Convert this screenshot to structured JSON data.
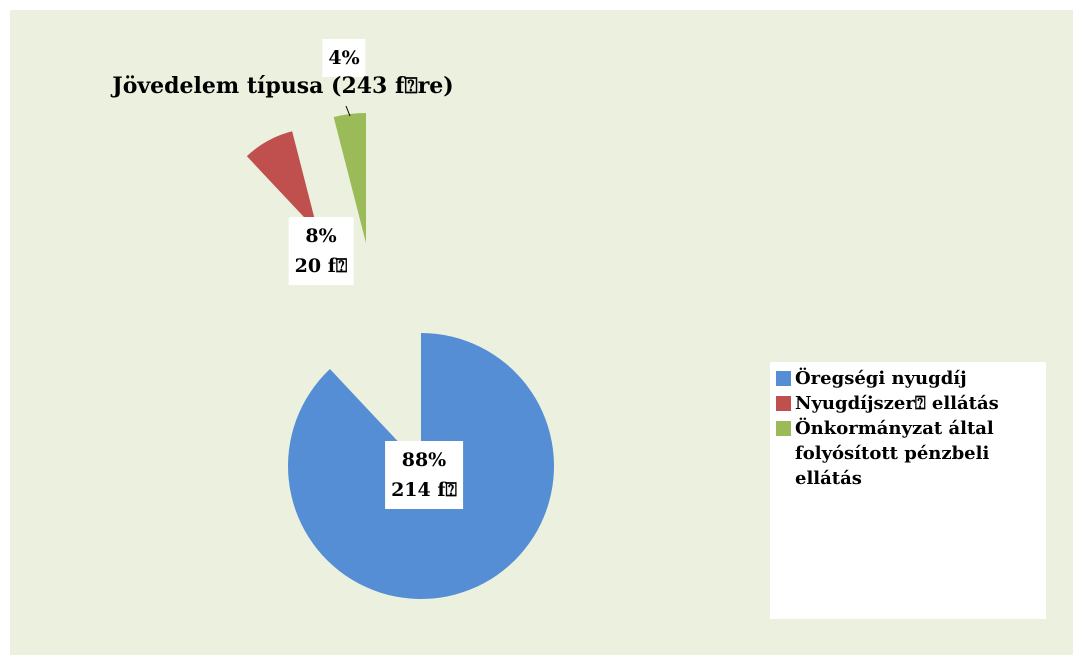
{
  "chart_data": {
    "type": "pie",
    "title": "Jövedelem típusa (243 f⍰re)",
    "categories": [
      "Öregségi nyugdíj",
      "Nyugdíjszer⍰ ellátás",
      "Önkormányzat által folyósított pénzbeli ellátás"
    ],
    "values": [
      88,
      8,
      4
    ],
    "value_labels": [
      "88%\n214 f⍰",
      "8%\n20 f⍰",
      "4%"
    ],
    "colors": [
      "#558ed5",
      "#c0504d",
      "#9bbb59"
    ],
    "legend": "right"
  }
}
